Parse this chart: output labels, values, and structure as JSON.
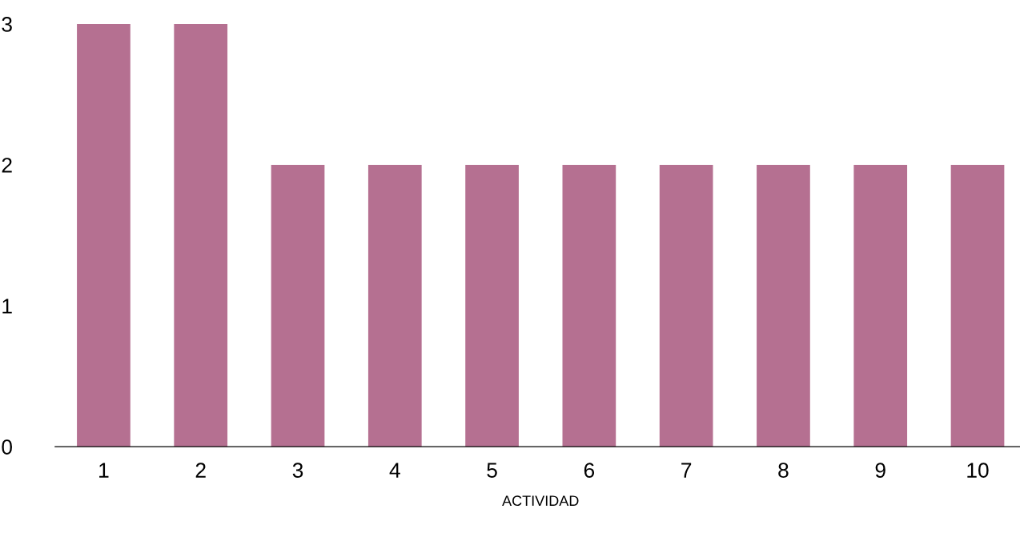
{
  "chart_data": {
    "type": "bar",
    "xlabel": "ACTIVIDAD",
    "categories": [
      "1",
      "2",
      "3",
      "4",
      "5",
      "6",
      "7",
      "8",
      "9",
      "10"
    ],
    "values": [
      3,
      3,
      2,
      2,
      2,
      2,
      2,
      2,
      2,
      2
    ],
    "color": "#b57091",
    "ylim": [
      0,
      3
    ],
    "yticks": [
      0,
      1,
      2,
      3
    ],
    "grid": false
  }
}
